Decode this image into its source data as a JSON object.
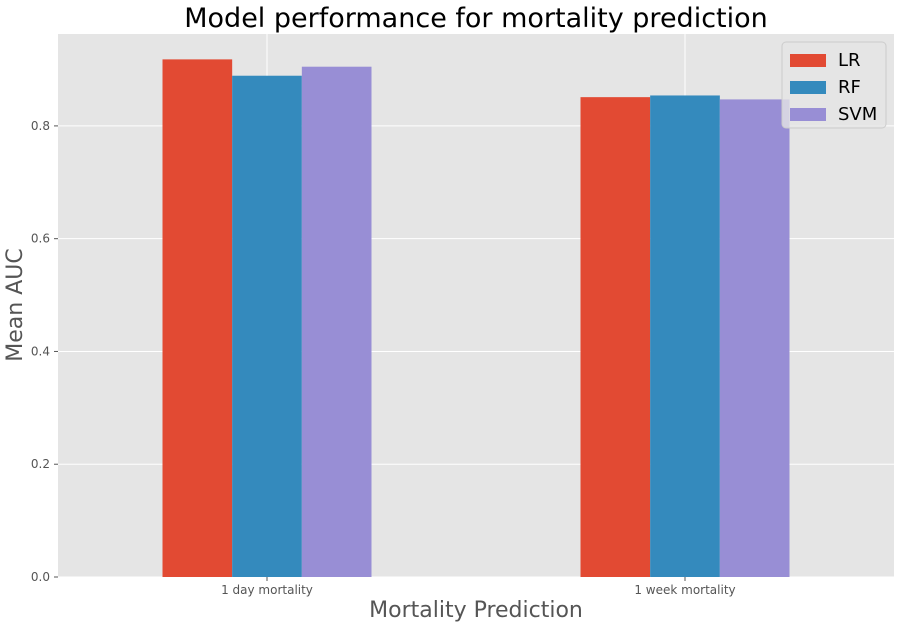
{
  "chart_data": {
    "type": "bar",
    "title": "Model performance for mortality prediction",
    "xlabel": "Mortality Prediction",
    "ylabel": "Mean AUC",
    "categories": [
      "1 day mortality",
      "1 week mortality"
    ],
    "series": [
      {
        "name": "LR",
        "values": [
          0.918,
          0.851
        ],
        "color": "#E24A33"
      },
      {
        "name": "RF",
        "values": [
          0.889,
          0.854
        ],
        "color": "#348ABD"
      },
      {
        "name": "SVM",
        "values": [
          0.905,
          0.847
        ],
        "color": "#988ED5"
      }
    ],
    "yticks": [
      "0.0",
      "0.2",
      "0.4",
      "0.6",
      "0.8"
    ],
    "ylim": [
      0,
      0.963
    ],
    "grid": true,
    "legend_position": "top-right",
    "style": {
      "background": "#E5E5E5",
      "grid_color": "#FFFFFF"
    }
  }
}
